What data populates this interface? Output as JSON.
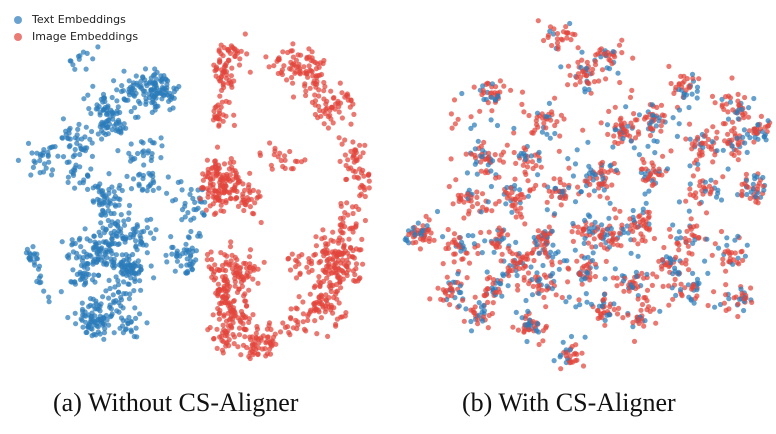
{
  "legend": [
    {
      "label": "Text Embeddings",
      "color": "#2b7bba"
    },
    {
      "label": "Image Embeddings",
      "color": "#e2453b"
    }
  ],
  "chart_data": [
    {
      "type": "scatter",
      "caption": "(a) Without CS-Aligner",
      "series": [
        {
          "name": "Text Embeddings",
          "color": "#2b7bba"
        },
        {
          "name": "Image Embeddings",
          "color": "#e2453b"
        }
      ],
      "grid": false,
      "axes": "hidden",
      "legend_position": "top-left"
    },
    {
      "type": "scatter",
      "caption": "(b) With CS-Aligner",
      "series": [
        {
          "name": "Text Embeddings",
          "color": "#2b7bba"
        },
        {
          "name": "Image Embeddings",
          "color": "#e2453b"
        }
      ],
      "grid": false,
      "axes": "hidden"
    }
  ]
}
